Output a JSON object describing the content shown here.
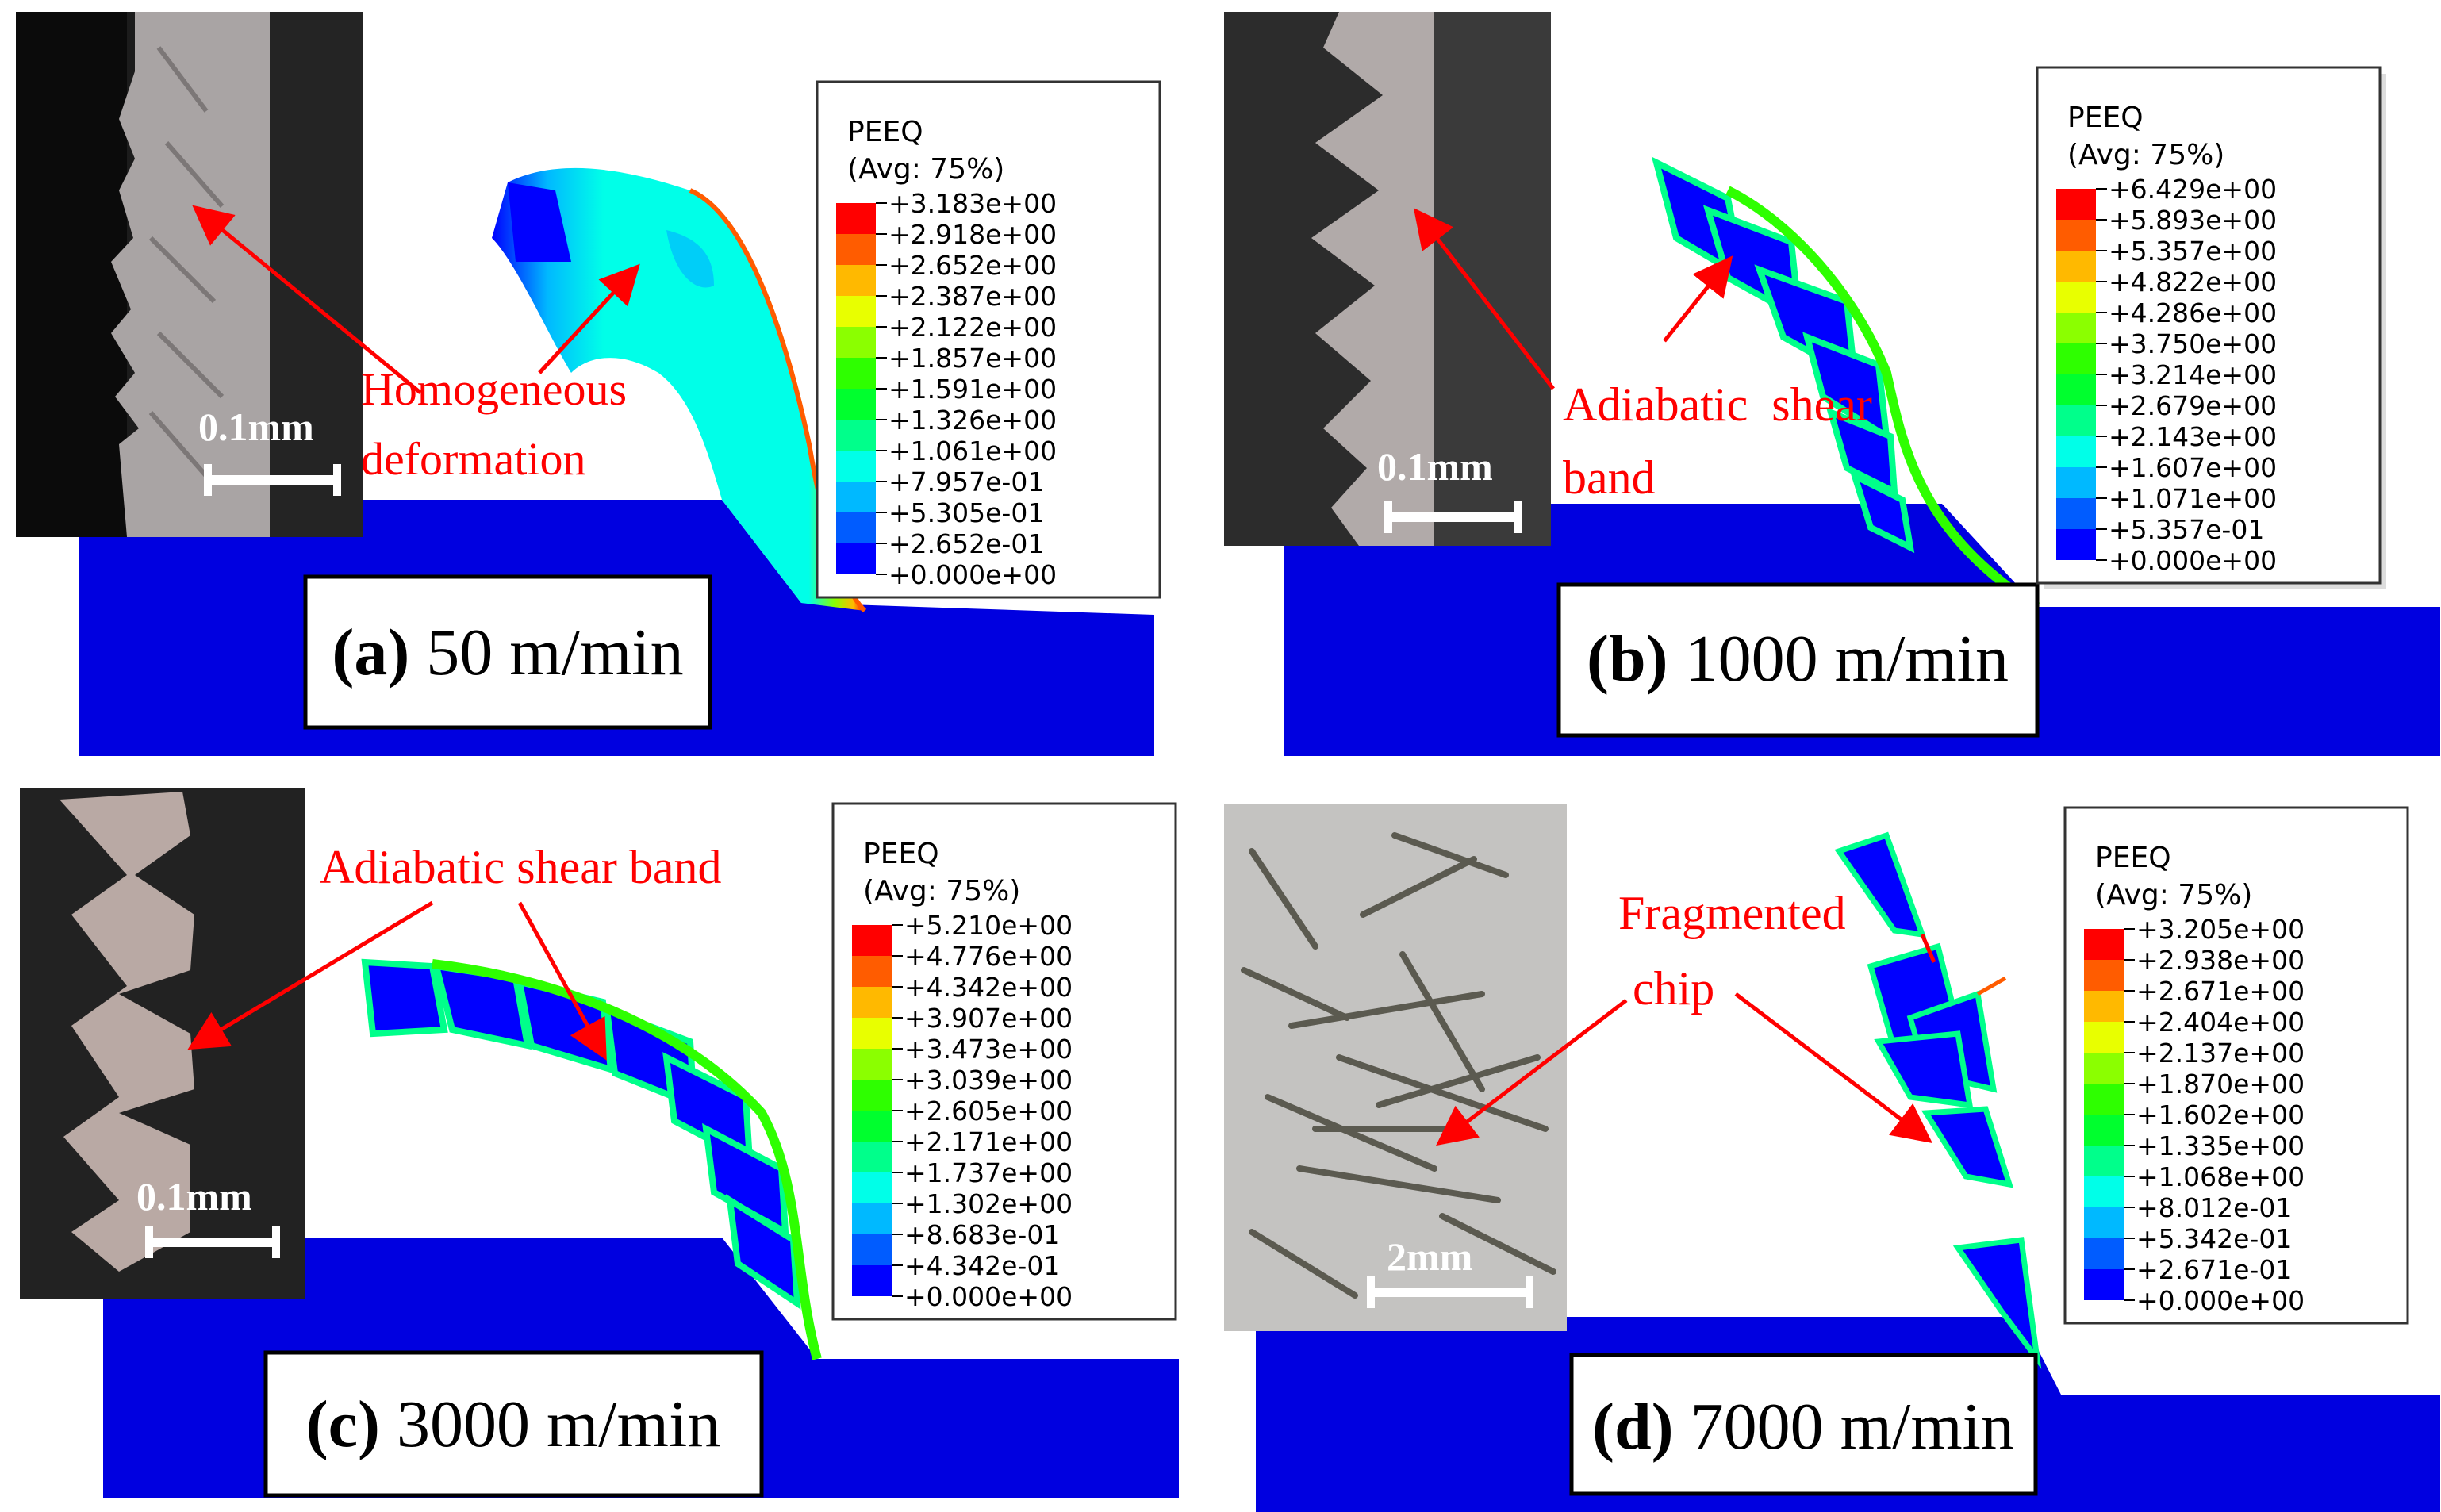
{
  "colors": {
    "workpiece": "#0000e0",
    "arrow": "#ff0000",
    "annotation": "#ff0000",
    "contour": [
      "#0000ff",
      "#005cff",
      "#00b9ff",
      "#00ffe8",
      "#00ff8b",
      "#00ff2e",
      "#2eff00",
      "#8bff00",
      "#e8ff00",
      "#ffb900",
      "#ff5c00",
      "#ff0000"
    ]
  },
  "panels": [
    {
      "id": "a",
      "caption_letter": "(a)",
      "caption_speed": "50 m/min",
      "scale_label": "0.1mm",
      "annotation_lines": [
        "Homogeneous",
        "deformation"
      ],
      "legend": {
        "title": "PEEQ",
        "subtitle": "(Avg: 75%)",
        "values": [
          "+3.183e+00",
          "+2.918e+00",
          "+2.652e+00",
          "+2.387e+00",
          "+2.122e+00",
          "+1.857e+00",
          "+1.591e+00",
          "+1.326e+00",
          "+1.061e+00",
          "+7.957e-01",
          "+5.305e-01",
          "+2.652e-01",
          "+0.000e+00"
        ]
      }
    },
    {
      "id": "b",
      "caption_letter": "(b)",
      "caption_speed": "1000 m/min",
      "scale_label": "0.1mm",
      "annotation_lines": [
        "Adiabatic  shear",
        "band"
      ],
      "legend": {
        "title": "PEEQ",
        "subtitle": "(Avg: 75%)",
        "values": [
          "+6.429e+00",
          "+5.893e+00",
          "+5.357e+00",
          "+4.822e+00",
          "+4.286e+00",
          "+3.750e+00",
          "+3.214e+00",
          "+2.679e+00",
          "+2.143e+00",
          "+1.607e+00",
          "+1.071e+00",
          "+5.357e-01",
          "+0.000e+00"
        ]
      }
    },
    {
      "id": "c",
      "caption_letter": "(c)",
      "caption_speed": "3000 m/min",
      "scale_label": "0.1mm",
      "annotation_lines": [
        "Adiabatic shear band"
      ],
      "legend": {
        "title": "PEEQ",
        "subtitle": "(Avg: 75%)",
        "values": [
          "+5.210e+00",
          "+4.776e+00",
          "+4.342e+00",
          "+3.907e+00",
          "+3.473e+00",
          "+3.039e+00",
          "+2.605e+00",
          "+2.171e+00",
          "+1.737e+00",
          "+1.302e+00",
          "+8.683e-01",
          "+4.342e-01",
          "+0.000e+00"
        ]
      }
    },
    {
      "id": "d",
      "caption_letter": "(d)",
      "caption_speed": "7000 m/min",
      "scale_label": "2mm",
      "annotation_lines": [
        "Fragmented",
        "chip"
      ],
      "legend": {
        "title": "PEEQ",
        "subtitle": "(Avg: 75%)",
        "values": [
          "+3.205e+00",
          "+2.938e+00",
          "+2.671e+00",
          "+2.404e+00",
          "+2.137e+00",
          "+1.870e+00",
          "+1.602e+00",
          "+1.335e+00",
          "+1.068e+00",
          "+8.012e-01",
          "+5.342e-01",
          "+2.671e-01",
          "+0.000e+00"
        ]
      }
    }
  ]
}
